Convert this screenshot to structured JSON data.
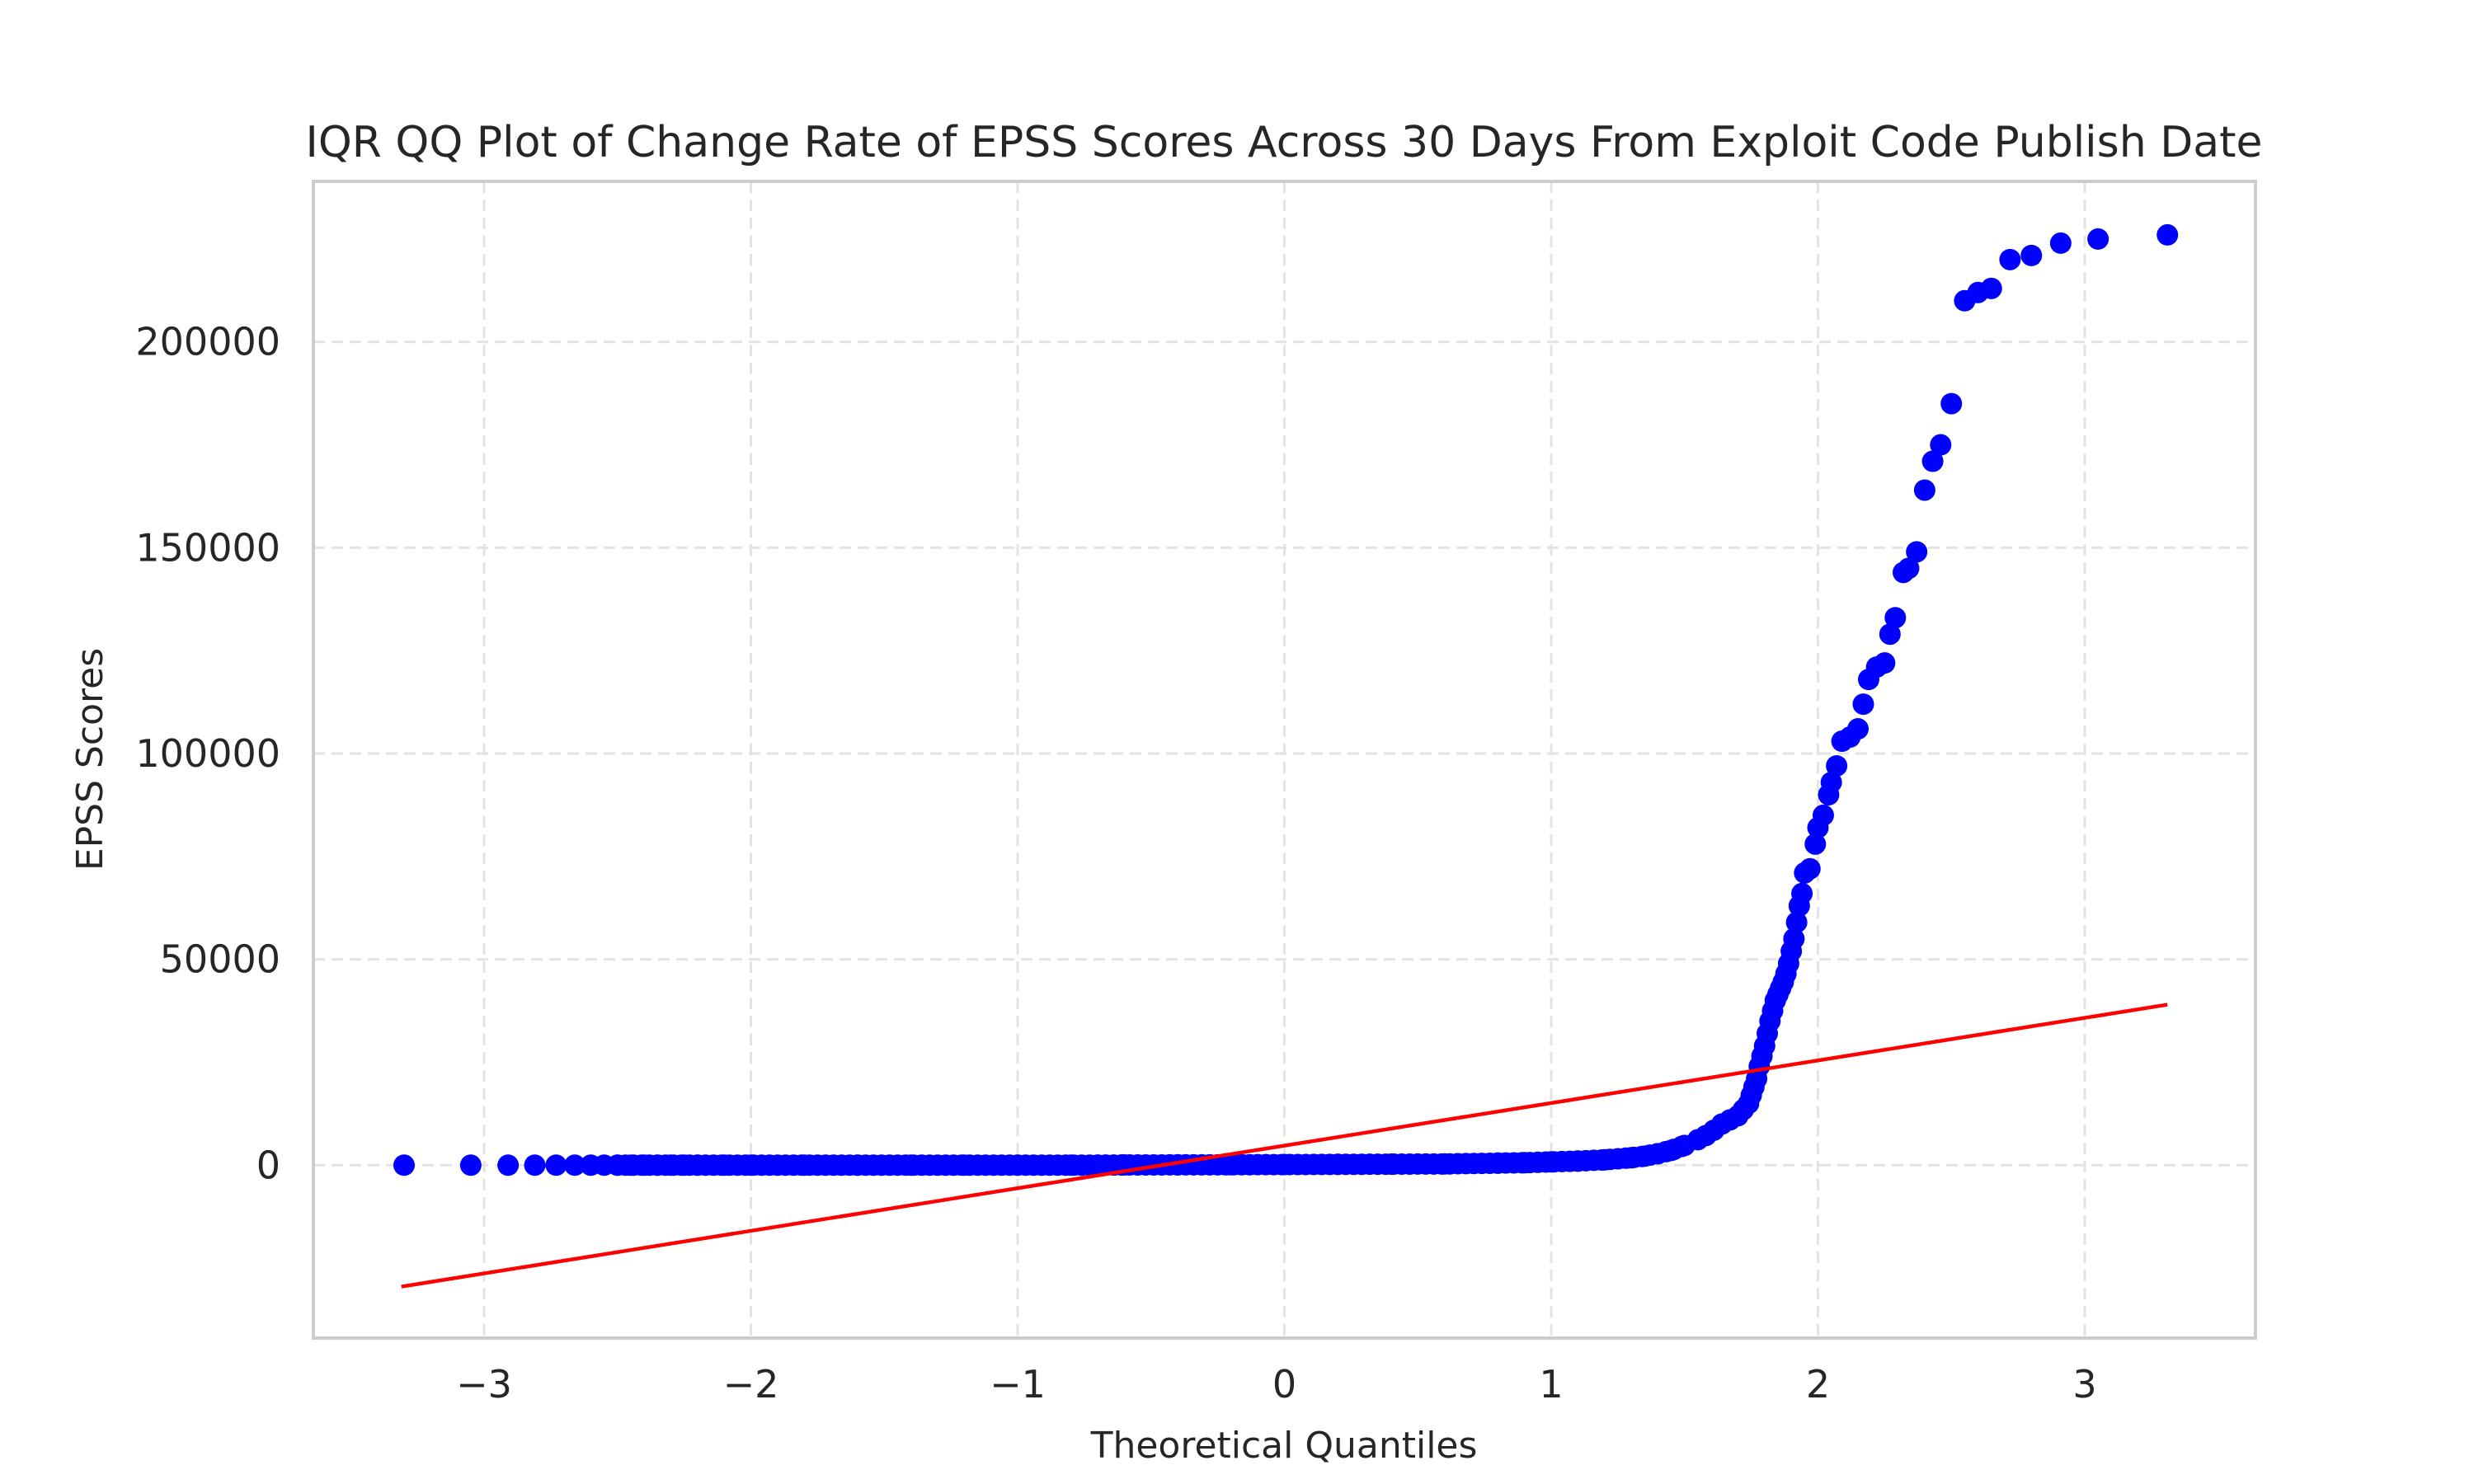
{
  "chart_data": {
    "type": "scatter",
    "title": "IQR QQ Plot of Change Rate of EPSS Scores Across 30 Days From Exploit Code Publish Date",
    "xlabel": "Theoretical Quantiles",
    "ylabel": "EPSS Scores",
    "xlim": [
      -3.64,
      3.64
    ],
    "ylim": [
      -42000,
      239000
    ],
    "grid": true,
    "x_ticks": [
      -3,
      -2,
      -1,
      0,
      1,
      2,
      3
    ],
    "x_tick_labels": [
      "−3",
      "−2",
      "−1",
      "0",
      "1",
      "2",
      "3"
    ],
    "y_ticks": [
      0,
      50000,
      100000,
      150000,
      200000
    ],
    "y_tick_labels": [
      "0",
      "50000",
      "100000",
      "150000",
      "200000"
    ],
    "colors": {
      "points": "#0000ff",
      "fit_line": "#ff0000",
      "grid": "#e3e3e3",
      "frame": "#cccccc",
      "text": "#262626"
    },
    "series": [
      {
        "kind": "points",
        "x": [
          -3.3,
          -3.05,
          -2.91,
          -2.81,
          -2.73,
          -2.66,
          -2.6,
          -2.55,
          -2.5,
          -2.45,
          -2.4,
          -2.35,
          -2.3,
          -2.25,
          -2.2,
          -2.1,
          -2.0,
          -1.8,
          -1.6,
          -1.4,
          -1.2,
          -1.0,
          -0.8,
          -0.6,
          -0.4,
          -0.2,
          0.0,
          0.2,
          0.4,
          0.6,
          0.8,
          0.9,
          1.0,
          1.1,
          1.2,
          1.3,
          1.35,
          1.4,
          1.45,
          1.5,
          1.55,
          1.58,
          1.61,
          1.64,
          1.67,
          1.7,
          1.72,
          1.74,
          1.75,
          1.76,
          1.77,
          1.78,
          1.79,
          1.8,
          1.81,
          1.82,
          1.83,
          1.84,
          1.85,
          1.86,
          1.87,
          1.88,
          1.89,
          1.9,
          1.91,
          1.92,
          1.93,
          1.94,
          1.95,
          1.97,
          1.99,
          2.0,
          2.02,
          2.04,
          2.05,
          2.07,
          2.09,
          2.12,
          2.15,
          2.17,
          2.19,
          2.22,
          2.25,
          2.27,
          2.29,
          2.32,
          2.34,
          2.37,
          2.4,
          2.43,
          2.46,
          2.5,
          2.55,
          2.6,
          2.65,
          2.72,
          2.8,
          2.91,
          3.05,
          3.31
        ],
        "y": [
          0,
          0,
          0,
          0,
          0,
          0,
          0,
          0,
          0,
          0,
          0,
          0,
          0,
          0,
          0,
          0,
          0,
          0,
          0,
          0,
          0,
          0,
          0,
          50,
          80,
          100,
          150,
          200,
          250,
          300,
          500,
          600,
          800,
          1000,
          1300,
          1800,
          2200,
          2800,
          3600,
          4800,
          6200,
          7200,
          8500,
          10000,
          11000,
          12000,
          13500,
          15000,
          17000,
          19000,
          21000,
          24000,
          26500,
          29000,
          32000,
          35000,
          37500,
          40000,
          41500,
          43000,
          44500,
          46500,
          49000,
          52000,
          55000,
          59000,
          63000,
          66000,
          71000,
          72000,
          78000,
          82000,
          85000,
          90000,
          93000,
          97000,
          103000,
          104000,
          106000,
          112000,
          118000,
          121000,
          122000,
          129000,
          133000,
          144000,
          145000,
          149000,
          164000,
          171000,
          175000,
          185000,
          210000,
          212000,
          213000,
          220000,
          221000,
          224000,
          225000,
          226000
        ]
      },
      {
        "kind": "fit_line",
        "x": [
          -3.31,
          3.31
        ],
        "y": [
          -29500,
          39000
        ]
      }
    ]
  }
}
